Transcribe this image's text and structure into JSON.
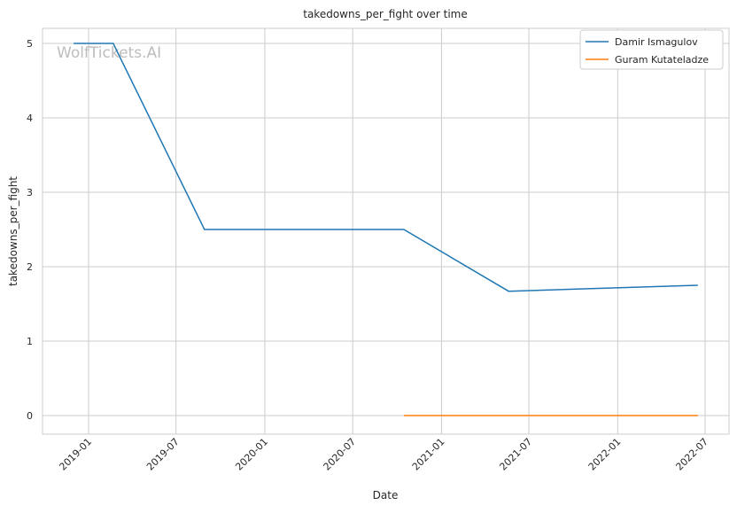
{
  "chart_data": {
    "type": "line",
    "title": "takedowns_per_fight over time",
    "xlabel": "Date",
    "ylabel": "takedowns_per_fight",
    "watermark": "WolfTickets.AI",
    "x_ticks": [
      "2019-01",
      "2019-07",
      "2020-01",
      "2020-07",
      "2021-01",
      "2021-07",
      "2022-01",
      "2022-07"
    ],
    "y_ticks": [
      0,
      1,
      2,
      3,
      4,
      5
    ],
    "xlim": [
      "2018-10-08",
      "2022-08-20"
    ],
    "ylim": [
      -0.25,
      5.25
    ],
    "grid": true,
    "legend_position": "top-right",
    "series": [
      {
        "name": "Damir Ismagulov",
        "color": "#1f77b4",
        "x": [
          "2018-12-01",
          "2019-02-21",
          "2019-08-29",
          "2020-10-15",
          "2021-05-20",
          "2022-06-16"
        ],
        "y": [
          5,
          5,
          2.5,
          2.5,
          1.67,
          1.75
        ]
      },
      {
        "name": "Guram Kutateladze",
        "color": "#ff7f0e",
        "x": [
          "2020-10-15",
          "2022-06-16"
        ],
        "y": [
          0,
          0
        ]
      }
    ]
  }
}
